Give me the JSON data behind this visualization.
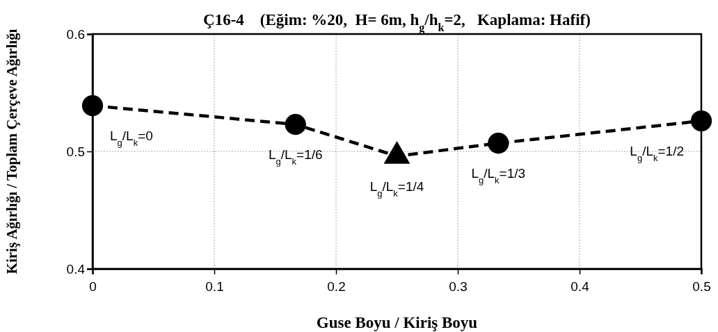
{
  "chart_data": {
    "type": "line",
    "title": "Ç16-4    (Eğim: %20,  H= 6m, h$_{g}$/h$_{k}$=2,   Kaplama: Hafif)",
    "xlabel": "Guse Boyu / Kiriş Boyu",
    "ylabel": "Kiriş Ağırlığı / Toplam Çerçeve Ağırlığı",
    "xlim": [
      0,
      0.5
    ],
    "xticks": [
      0,
      0.1,
      0.2,
      0.3,
      0.4,
      0.5
    ],
    "ylim": [
      0.4,
      0.6
    ],
    "yticks": [
      0.4,
      0.5,
      0.6
    ],
    "grid": true,
    "series": [
      {
        "type": "line",
        "color": "#000000",
        "line_style": "dashed",
        "marker": "none",
        "x": [
          0,
          0.1667,
          0.25,
          0.3333,
          0.5
        ],
        "values": [
          0.539,
          0.523,
          0.496,
          0.507,
          0.526
        ]
      },
      {
        "type": "scatter",
        "color": "#000000",
        "marker": "circle",
        "x": [
          0,
          0.1667,
          0.3333,
          0.5
        ],
        "values": [
          0.539,
          0.523,
          0.507,
          0.526
        ]
      },
      {
        "type": "scatter",
        "color": "#000000",
        "marker": "triangle",
        "x": [
          0.25
        ],
        "values": [
          0.496
        ]
      }
    ],
    "annotations": [
      {
        "text": "L$_{g}$/L$_{k}$=0",
        "x": 0,
        "y": 0.539
      },
      {
        "text": "L$_{g}$/L$_{k}$=1/6",
        "x": 0.1667,
        "y": 0.523
      },
      {
        "text": "L$_{g}$/L$_{k}$=1/4",
        "x": 0.25,
        "y": 0.496
      },
      {
        "text": "L$_{g}$/L$_{k}$=1/3",
        "x": 0.3333,
        "y": 0.507
      },
      {
        "text": "L$_{g}$/L$_{k}$=1/2",
        "x": 0.5,
        "y": 0.526
      }
    ]
  }
}
